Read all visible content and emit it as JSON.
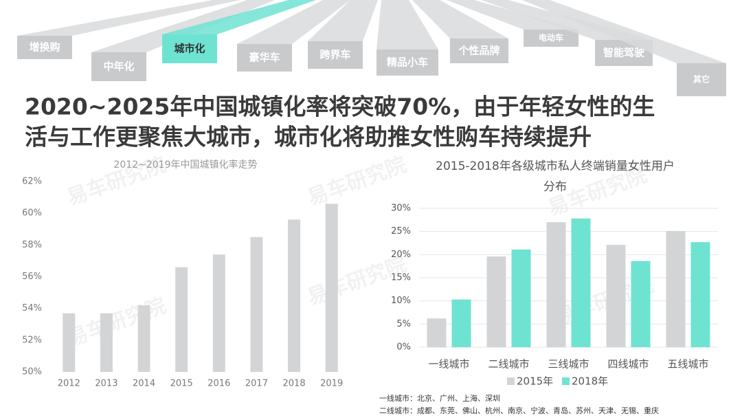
{
  "tabs": [
    "增换购",
    "中年化",
    "城市化",
    "豪华车",
    "跨界车",
    "精品小车",
    "个性品牌",
    "电动车",
    "智能驾驶",
    "其它"
  ],
  "headline": [
    "2020~2025年中国城镇化率将突破70%，由于年轻女性的生",
    "活与工作更聚焦大城市，城市化将助推女性购车持续提升"
  ],
  "watermark": "易车研究院",
  "footnotes": [
    "一线城市：北京、广州、上海、深圳",
    "二线城市：成都、东莞、佛山、杭州、南京、宁波、青岛、苏州、天津、无锡、重庆"
  ],
  "chart_data": [
    {
      "type": "bar",
      "title": [
        "2012~2019年中国城镇化率走势"
      ],
      "categories": [
        "2012",
        "2013",
        "2014",
        "2015",
        "2016",
        "2017",
        "2018",
        "2019"
      ],
      "series": [
        {
          "name": null,
          "color": "#d3d4d6",
          "values": [
            53.7,
            53.7,
            54.2,
            56.6,
            57.4,
            58.5,
            59.6,
            60.6
          ]
        }
      ],
      "ylim": [
        50,
        62
      ],
      "yticks": [
        {
          "value": 50,
          "label": "50%"
        },
        {
          "value": 52,
          "label": "52%"
        },
        {
          "value": 54,
          "label": "54%"
        },
        {
          "value": 56,
          "label": "56%"
        },
        {
          "value": 58,
          "label": "58%"
        },
        {
          "value": 60,
          "label": "60%"
        },
        {
          "value": 62,
          "label": "62%"
        }
      ],
      "grid": false
    },
    {
      "type": "bar",
      "title": [
        "2015-2018年各级城市私人终端销量女性用户",
        "分布"
      ],
      "categories": [
        "一线城市",
        "二线城市",
        "三线城市",
        "四线城市",
        "五线城市"
      ],
      "series": [
        {
          "name": "2015年",
          "color": "#d3d4d6",
          "values": [
            6.2,
            19.6,
            27.0,
            22.1,
            25.1
          ]
        },
        {
          "name": "2018年",
          "color": "#6fe3d2",
          "values": [
            10.3,
            21.1,
            27.8,
            18.6,
            22.7
          ]
        }
      ],
      "ylim": [
        0,
        30
      ],
      "yticks": [
        {
          "value": 0,
          "label": "0%"
        },
        {
          "value": 5,
          "label": "5%"
        },
        {
          "value": 10,
          "label": "10%"
        },
        {
          "value": 15,
          "label": "15%"
        },
        {
          "value": 20,
          "label": "20%"
        },
        {
          "value": 25,
          "label": "25%"
        },
        {
          "value": 30,
          "label": "30%"
        }
      ],
      "grid": true,
      "legend": "bottom"
    }
  ]
}
